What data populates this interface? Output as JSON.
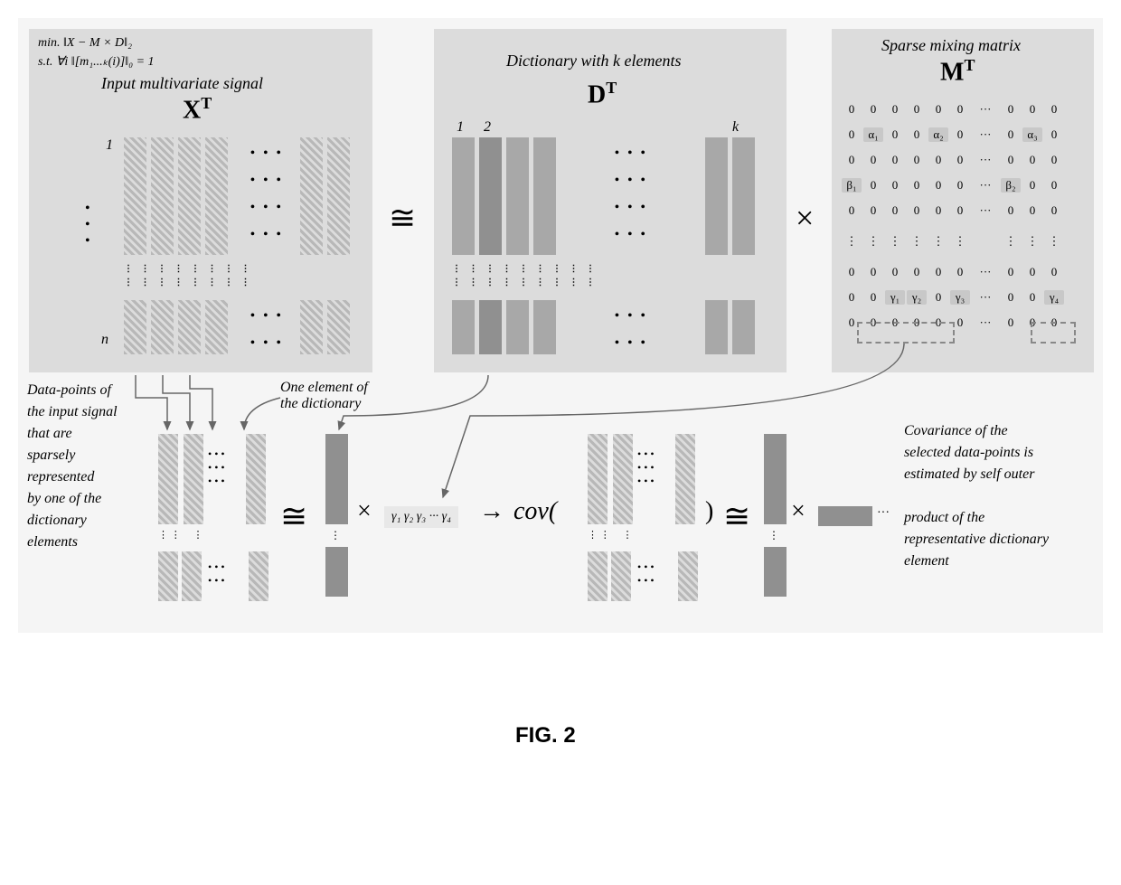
{
  "figure_caption": "FIG. 2",
  "panels": {
    "x": {
      "formula_line1": "min. ‖X − M × D‖₂",
      "formula_line2": "s.t. ∀i ‖[m₁...ₖ(i)]‖₀ = 1",
      "title_sub": "Input multivariate signal",
      "title_main": "X",
      "title_sup": "T",
      "index_top": "1",
      "index_bottom": "n",
      "ellipsis": "• • •"
    },
    "d": {
      "title_sub": "Dictionary with k elements",
      "title_main": "D",
      "title_sup": "T",
      "index_1": "1",
      "index_2": "2",
      "index_k": "k",
      "ellipsis": "• • •"
    },
    "m": {
      "title_sub": "Sparse mixing matrix",
      "title_main": "M",
      "title_sup": "T",
      "rows": [
        [
          "0",
          "0",
          "0",
          "0",
          "0",
          "0",
          "···",
          "0",
          "0",
          "0"
        ],
        [
          "0",
          "α₁",
          "0",
          "0",
          "α₂",
          "0",
          "···",
          "0",
          "α₃",
          "0"
        ],
        [
          "0",
          "0",
          "0",
          "0",
          "0",
          "0",
          "···",
          "0",
          "0",
          "0"
        ],
        [
          "β₁",
          "0",
          "0",
          "0",
          "0",
          "0",
          "···",
          "β₂",
          "0",
          "0"
        ],
        [
          "0",
          "0",
          "0",
          "0",
          "0",
          "0",
          "···",
          "0",
          "0",
          "0"
        ],
        [
          "⋮",
          "⋮",
          "⋮",
          "⋮",
          "⋮",
          "⋮",
          "",
          "⋮",
          "⋮",
          "⋮"
        ],
        [
          "0",
          "0",
          "0",
          "0",
          "0",
          "0",
          "···",
          "0",
          "0",
          "0"
        ],
        [
          "0",
          "0",
          "γ₁",
          "γ₂",
          "0",
          "γ₃",
          "···",
          "0",
          "0",
          "γ₄"
        ],
        [
          "0",
          "0",
          "0",
          "0",
          "0",
          "0",
          "···",
          "0",
          "0",
          "0"
        ]
      ]
    }
  },
  "operators": {
    "approx1": "≅",
    "times1": "×",
    "approx2": "≅",
    "times2": "×",
    "arrow": "→",
    "cov": "cov(",
    "cov_close": ")",
    "approx3": "≅",
    "times3": "×"
  },
  "labels": {
    "left_annotation": "Data-points of\nthe input signal\nthat are\nsparsely\nrepresented\nby one of the\ndictionary\nelements",
    "dict_element": "One element of\nthe dictionary",
    "right_annotation": "Covariance of the\nselected data-points is\nestimated by self outer\n\nproduct of the\nrepresentative dictionary\nelement",
    "gamma_row": "γ₁ γ₂ γ₃ ··· γ₄"
  },
  "colors": {
    "panel_bg": "#dcdcdc",
    "container_bg": "#f5f5f5",
    "hatch_dark": "#b8b8b8",
    "hatch_light": "#dcdcdc",
    "solid": "#a8a8a8",
    "arrow": "#666666",
    "text": "#000000"
  }
}
